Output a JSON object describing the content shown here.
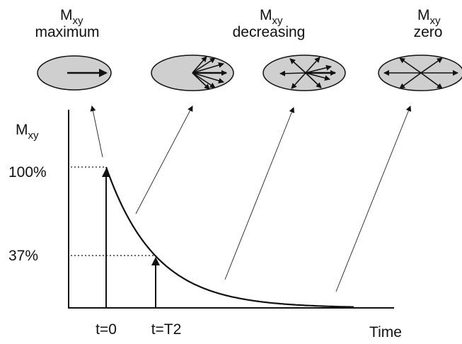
{
  "states": [
    {
      "symbol": "M",
      "subscript": "xy",
      "caption": "maximum"
    },
    {
      "symbol": "M",
      "subscript": "xy",
      "caption": "decreasing"
    },
    {
      "symbol": "M",
      "subscript": "xy",
      "caption": "zero"
    }
  ],
  "axis": {
    "y_symbol": "M",
    "y_subscript": "xy",
    "level_high": "100%",
    "level_low": "37%",
    "t0": "t=0",
    "t2": "t=T2",
    "x_label": "Time"
  }
}
